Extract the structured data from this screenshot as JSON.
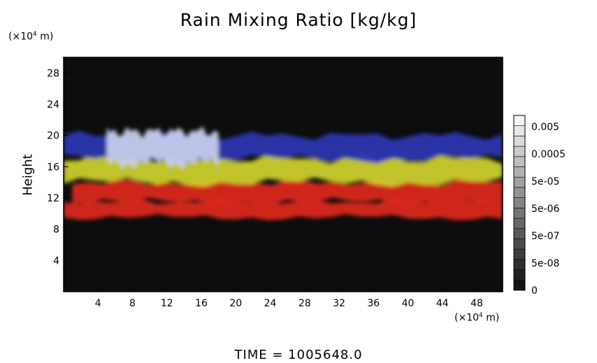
{
  "chart_data": {
    "type": "heatmap",
    "title": "Rain Mixing Ratio [kg/kg]",
    "ylabel": "Height",
    "xlabel": "",
    "x_unit_prefix": "(×10",
    "x_unit_exp": "4",
    "x_unit_suffix": " m)",
    "y_unit_prefix": "(×10",
    "y_unit_exp": "4",
    "y_unit_suffix": " m)",
    "xlim": [
      0,
      51
    ],
    "ylim": [
      0,
      30
    ],
    "x_ticks": [
      4,
      8,
      12,
      16,
      20,
      24,
      28,
      32,
      36,
      40,
      44,
      48
    ],
    "y_ticks": [
      4,
      8,
      12,
      16,
      20,
      24,
      28
    ],
    "colorbar": {
      "labels": [
        "0.005",
        "0.0005",
        "5e-05",
        "5e-06",
        "5e-07",
        "5e-08",
        "0"
      ],
      "levels": 17
    },
    "colors": {
      "background": "#0d0d0d",
      "red": "#e0281c",
      "yellow": "#cfd22a",
      "blue": "#2a36b4",
      "pale_blue": "#c8d0ee"
    },
    "bands": [
      {
        "name": "lower-red-band",
        "color": "red",
        "x": [
          0,
          51
        ],
        "y": [
          9.5,
          11.5
        ]
      },
      {
        "name": "red-band",
        "color": "red",
        "x": [
          1,
          51
        ],
        "y": [
          11.5,
          14.0
        ]
      },
      {
        "name": "yellow-band",
        "color": "yellow",
        "x": [
          0,
          51
        ],
        "y": [
          14.0,
          17.0
        ]
      },
      {
        "name": "blue-band",
        "color": "blue",
        "x": [
          0,
          51
        ],
        "y": [
          17.0,
          20.0
        ]
      },
      {
        "name": "pale-blue-core",
        "color": "pale_blue",
        "x": [
          5,
          18
        ],
        "y": [
          16.5,
          20.5
        ]
      }
    ]
  },
  "time_label": "TIME  =  1005648.0"
}
